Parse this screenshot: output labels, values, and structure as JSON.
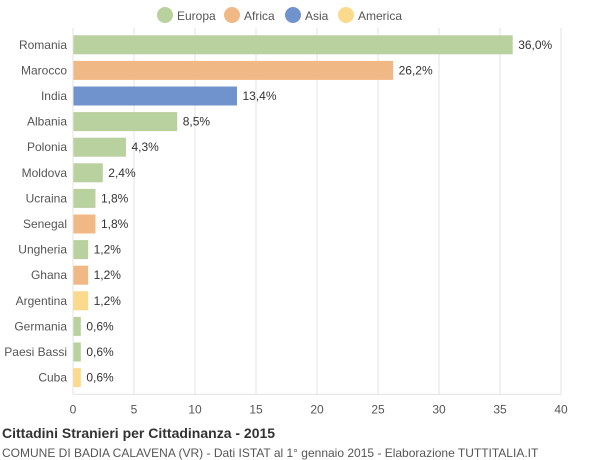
{
  "chart_data": {
    "type": "bar",
    "orientation": "horizontal",
    "title": "Cittadini Stranieri per Cittadinanza - 2015",
    "subtitle": "COMUNE DI BADIA CALAVENA (VR) - Dati ISTAT al 1° gennaio 2015 - Elaborazione TUTTITALIA.IT",
    "legend": [
      {
        "name": "Europa",
        "color": "#b9d09f"
      },
      {
        "name": "Africa",
        "color": "#f0b885"
      },
      {
        "name": "Asia",
        "color": "#7193cd"
      },
      {
        "name": "America",
        "color": "#fbd98d"
      }
    ],
    "legend_position": "top",
    "categories": [
      "Romania",
      "Marocco",
      "India",
      "Albania",
      "Polonia",
      "Moldova",
      "Ucraina",
      "Senegal",
      "Ungheria",
      "Ghana",
      "Argentina",
      "Germania",
      "Paesi Bassi",
      "Cuba"
    ],
    "values": [
      36.0,
      26.2,
      13.4,
      8.5,
      4.3,
      2.4,
      1.8,
      1.8,
      1.2,
      1.2,
      1.2,
      0.6,
      0.6,
      0.6
    ],
    "value_labels": [
      "36,0%",
      "26,2%",
      "13,4%",
      "8,5%",
      "4,3%",
      "2,4%",
      "1,8%",
      "1,8%",
      "1,2%",
      "1,2%",
      "1,2%",
      "0,6%",
      "0,6%",
      "0,6%"
    ],
    "groups": [
      "Europa",
      "Africa",
      "Asia",
      "Europa",
      "Europa",
      "Europa",
      "Europa",
      "Africa",
      "Europa",
      "Africa",
      "America",
      "Europa",
      "Europa",
      "America"
    ],
    "xlim": [
      0,
      40
    ],
    "xticks": [
      0,
      5,
      10,
      15,
      20,
      25,
      30,
      35,
      40
    ],
    "grid": true
  }
}
